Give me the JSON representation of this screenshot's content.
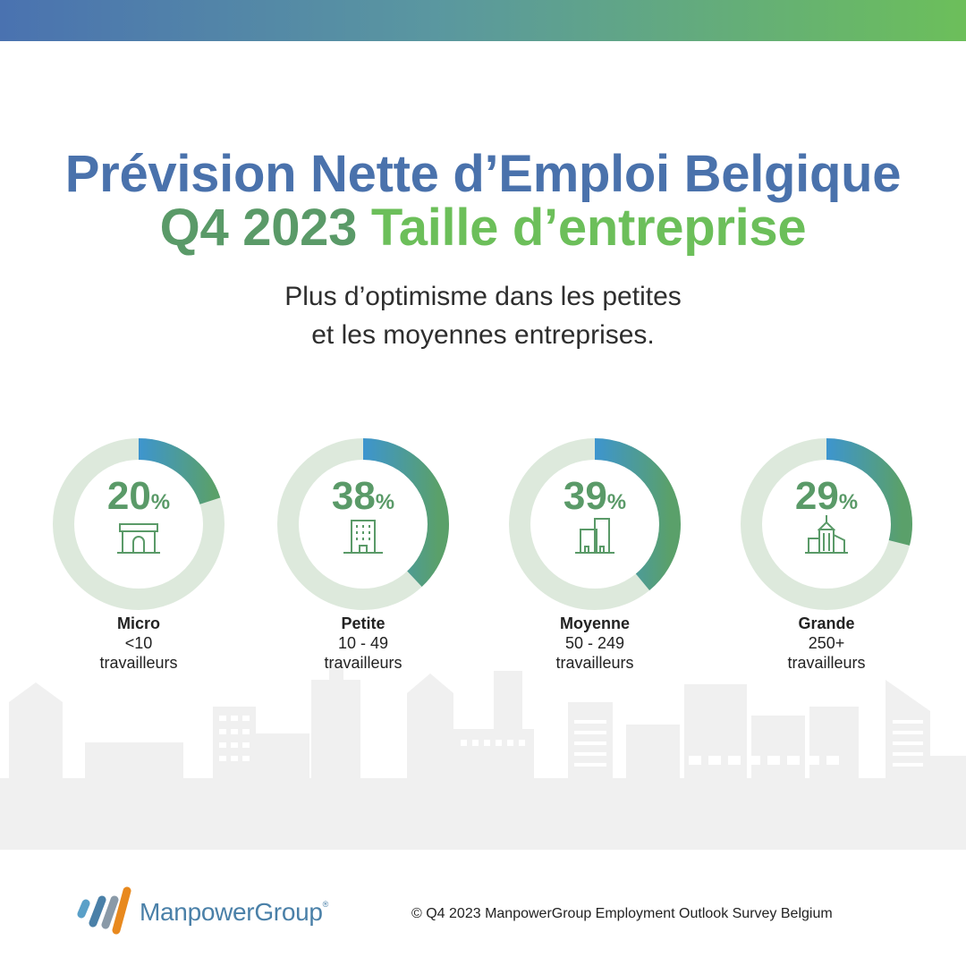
{
  "header": {
    "title_line1": "Prévision Nette d’Emploi Belgique",
    "title_line2_part1": "Q4 2023",
    "title_line2_part2": "Taille d’entreprise"
  },
  "subtitle": {
    "line1": "Plus d’optimisme dans les petites",
    "line2": "et les moyennes entreprises."
  },
  "colors": {
    "ring_track": "#dde9dc",
    "ring_start": "#3a64a8",
    "ring_mid": "#3d95cf",
    "ring_end": "#5aa06a",
    "percent_text": "#5a9a68",
    "skyline": "#f0f0f0"
  },
  "chart_data": {
    "type": "donut",
    "unit": "%",
    "categories": [
      "Micro",
      "Petite",
      "Moyenne",
      "Grande"
    ],
    "values": [
      20,
      38,
      39,
      29
    ],
    "items": [
      {
        "name": "Micro",
        "range": "<10",
        "workers": "travailleurs",
        "value": 20,
        "icon": "shop-icon"
      },
      {
        "name": "Petite",
        "range": "10 - 49",
        "workers": "travailleurs",
        "value": 38,
        "icon": "office-building-icon"
      },
      {
        "name": "Moyenne",
        "range": "50 - 249",
        "workers": "travailleurs",
        "value": 39,
        "icon": "twin-buildings-icon"
      },
      {
        "name": "Grande",
        "range": "250+",
        "workers": "travailleurs",
        "value": 29,
        "icon": "skyscraper-icon"
      }
    ]
  },
  "footer": {
    "logo_text": "ManpowerGroup",
    "logo_mark": "®",
    "copyright": "© Q4 2023 ManpowerGroup Employment Outlook Survey Belgium"
  }
}
